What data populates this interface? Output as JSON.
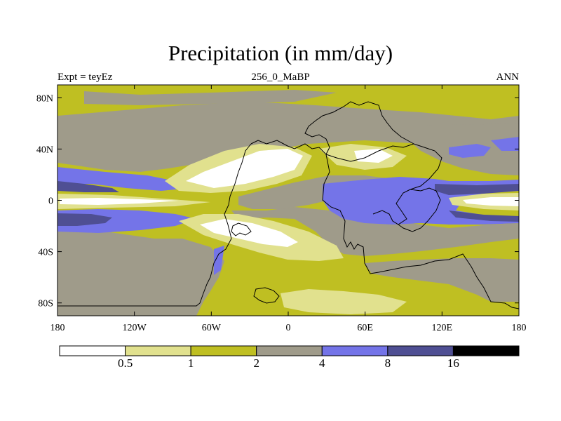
{
  "title": "Precipitation (in mm/day)",
  "subtitle_left": "Expt = teyEz",
  "subtitle_center": "256_0_MaBP",
  "subtitle_right": "ANN",
  "map": {
    "y_ticks": [
      {
        "value": 80,
        "label": "80N"
      },
      {
        "value": 40,
        "label": "40N"
      },
      {
        "value": 0,
        "label": "0"
      },
      {
        "value": -40,
        "label": "40S"
      },
      {
        "value": -80,
        "label": "80S"
      }
    ],
    "x_ticks": [
      {
        "value": -180,
        "label": "180"
      },
      {
        "value": -120,
        "label": "120W"
      },
      {
        "value": -60,
        "label": "60W"
      },
      {
        "value": 0,
        "label": "0"
      },
      {
        "value": 60,
        "label": "60E"
      },
      {
        "value": 120,
        "label": "120E"
      },
      {
        "value": 180,
        "label": "180"
      }
    ]
  },
  "colorbar": {
    "colors": [
      "#ffffff",
      "#e1e18e",
      "#bfbf22",
      "#9f9b8a",
      "#7474e8",
      "#4f4f93",
      "#000000"
    ],
    "labels": [
      "0.5",
      "1",
      "2",
      "4",
      "8",
      "16"
    ]
  }
}
